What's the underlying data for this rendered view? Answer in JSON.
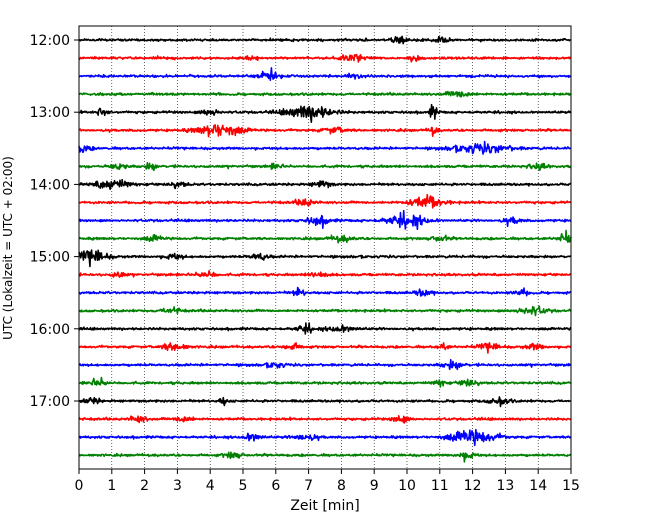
{
  "chart_data": {
    "type": "line",
    "title": "",
    "xlabel": "Zeit  [min]",
    "ylabel": "UTC (Lokalzeit = UTC + 02:00)",
    "xlim": [
      0,
      15
    ],
    "x_ticks": [
      "0",
      "1",
      "2",
      "3",
      "4",
      "5",
      "6",
      "7",
      "8",
      "9",
      "10",
      "11",
      "12",
      "13",
      "14",
      "15"
    ],
    "y_ticks": [
      "12:00",
      "13:00",
      "14:00",
      "15:00",
      "16:00",
      "17:00"
    ],
    "grid": "x-dotted",
    "trace_interval_min": 15,
    "colors": [
      "#000000",
      "#ff0000",
      "#0000ff",
      "#008000"
    ],
    "series": [
      {
        "start": "12:00",
        "color": "#000000",
        "bursts": [
          [
            9.8,
            0.5,
            0.25
          ],
          [
            11.1,
            0.45,
            0.3
          ]
        ]
      },
      {
        "start": "12:15",
        "color": "#ff0000",
        "bursts": [
          [
            5.3,
            0.55,
            0.2
          ],
          [
            8.3,
            0.6,
            0.35
          ],
          [
            10.2,
            0.4,
            0.2
          ]
        ]
      },
      {
        "start": "12:30",
        "color": "#0000ff",
        "bursts": [
          [
            5.8,
            0.55,
            0.35
          ],
          [
            8.4,
            0.5,
            0.2
          ]
        ]
      },
      {
        "start": "12:45",
        "color": "#008000",
        "bursts": [
          [
            11.6,
            0.5,
            0.4
          ]
        ]
      },
      {
        "start": "13:00",
        "color": "#000000",
        "bursts": [
          [
            0.7,
            0.6,
            0.2
          ],
          [
            4.0,
            0.55,
            0.3
          ],
          [
            7.0,
            1.0,
            0.8
          ],
          [
            10.8,
            0.9,
            0.15
          ]
        ]
      },
      {
        "start": "13:15",
        "color": "#ff0000",
        "bursts": [
          [
            4.3,
            1.0,
            0.75
          ],
          [
            7.8,
            0.4,
            0.4
          ],
          [
            10.8,
            0.6,
            0.15
          ]
        ]
      },
      {
        "start": "13:30",
        "color": "#0000ff",
        "bursts": [
          [
            0.1,
            0.5,
            0.3
          ],
          [
            12.3,
            0.6,
            1.0
          ]
        ]
      },
      {
        "start": "13:45",
        "color": "#008000",
        "bursts": [
          [
            1.2,
            0.45,
            0.3
          ],
          [
            2.2,
            0.5,
            0.2
          ],
          [
            6.0,
            0.4,
            0.2
          ],
          [
            14.0,
            0.4,
            0.3
          ]
        ]
      },
      {
        "start": "14:00",
        "color": "#000000",
        "bursts": [
          [
            1.0,
            0.7,
            0.6
          ],
          [
            3.0,
            0.4,
            0.3
          ],
          [
            7.4,
            0.5,
            0.3
          ]
        ]
      },
      {
        "start": "14:15",
        "color": "#ff0000",
        "bursts": [
          [
            6.9,
            0.5,
            0.3
          ],
          [
            10.6,
            0.8,
            0.6
          ]
        ]
      },
      {
        "start": "14:30",
        "color": "#0000ff",
        "bursts": [
          [
            7.3,
            0.6,
            0.4
          ],
          [
            10.0,
            0.9,
            0.7
          ],
          [
            13.2,
            0.45,
            0.3
          ]
        ]
      },
      {
        "start": "14:45",
        "color": "#008000",
        "bursts": [
          [
            2.3,
            0.4,
            0.3
          ],
          [
            8.0,
            0.4,
            0.4
          ],
          [
            11.0,
            0.45,
            0.3
          ],
          [
            14.9,
            0.8,
            0.3
          ]
        ]
      },
      {
        "start": "15:00",
        "color": "#000000",
        "bursts": [
          [
            0.4,
            1.0,
            0.5
          ],
          [
            2.9,
            0.4,
            0.3
          ],
          [
            5.5,
            0.5,
            0.3
          ]
        ]
      },
      {
        "start": "15:15",
        "color": "#ff0000",
        "bursts": [
          [
            1.2,
            0.5,
            0.2
          ],
          [
            3.9,
            0.5,
            0.3
          ],
          [
            7.3,
            0.5,
            0.3
          ]
        ]
      },
      {
        "start": "15:30",
        "color": "#0000ff",
        "bursts": [
          [
            6.7,
            0.6,
            0.2
          ],
          [
            10.5,
            0.45,
            0.3
          ],
          [
            13.5,
            0.5,
            0.25
          ]
        ]
      },
      {
        "start": "15:45",
        "color": "#008000",
        "bursts": [
          [
            2.8,
            0.45,
            0.3
          ],
          [
            13.8,
            0.6,
            0.5
          ]
        ]
      },
      {
        "start": "16:00",
        "color": "#000000",
        "bursts": [
          [
            6.9,
            0.55,
            0.3
          ],
          [
            8.0,
            0.45,
            0.5
          ]
        ]
      },
      {
        "start": "16:15",
        "color": "#ff0000",
        "bursts": [
          [
            2.9,
            0.6,
            0.4
          ],
          [
            6.5,
            0.45,
            0.3
          ],
          [
            11.1,
            0.6,
            0.15
          ],
          [
            12.5,
            0.55,
            0.35
          ],
          [
            13.9,
            0.45,
            0.3
          ]
        ]
      },
      {
        "start": "16:30",
        "color": "#0000ff",
        "bursts": [
          [
            11.4,
            0.55,
            0.35
          ],
          [
            6.0,
            0.35,
            0.3
          ]
        ]
      },
      {
        "start": "16:45",
        "color": "#008000",
        "bursts": [
          [
            0.6,
            0.5,
            0.3
          ],
          [
            11.0,
            0.5,
            0.2
          ],
          [
            11.9,
            0.55,
            0.3
          ]
        ]
      },
      {
        "start": "17:00",
        "color": "#000000",
        "bursts": [
          [
            0.4,
            0.5,
            0.25
          ],
          [
            4.4,
            0.55,
            0.15
          ],
          [
            12.8,
            0.5,
            0.35
          ]
        ]
      },
      {
        "start": "17:15",
        "color": "#ff0000",
        "bursts": [
          [
            1.8,
            0.45,
            0.3
          ],
          [
            3.2,
            0.5,
            0.3
          ],
          [
            9.8,
            0.5,
            0.3
          ]
        ]
      },
      {
        "start": "17:30",
        "color": "#0000ff",
        "bursts": [
          [
            5.3,
            0.6,
            0.3
          ],
          [
            6.9,
            0.5,
            0.4
          ],
          [
            12.0,
            1.0,
            0.8
          ]
        ]
      },
      {
        "start": "17:45",
        "color": "#008000",
        "bursts": [
          [
            4.7,
            0.45,
            0.3
          ],
          [
            11.8,
            0.5,
            0.3
          ]
        ]
      }
    ]
  }
}
